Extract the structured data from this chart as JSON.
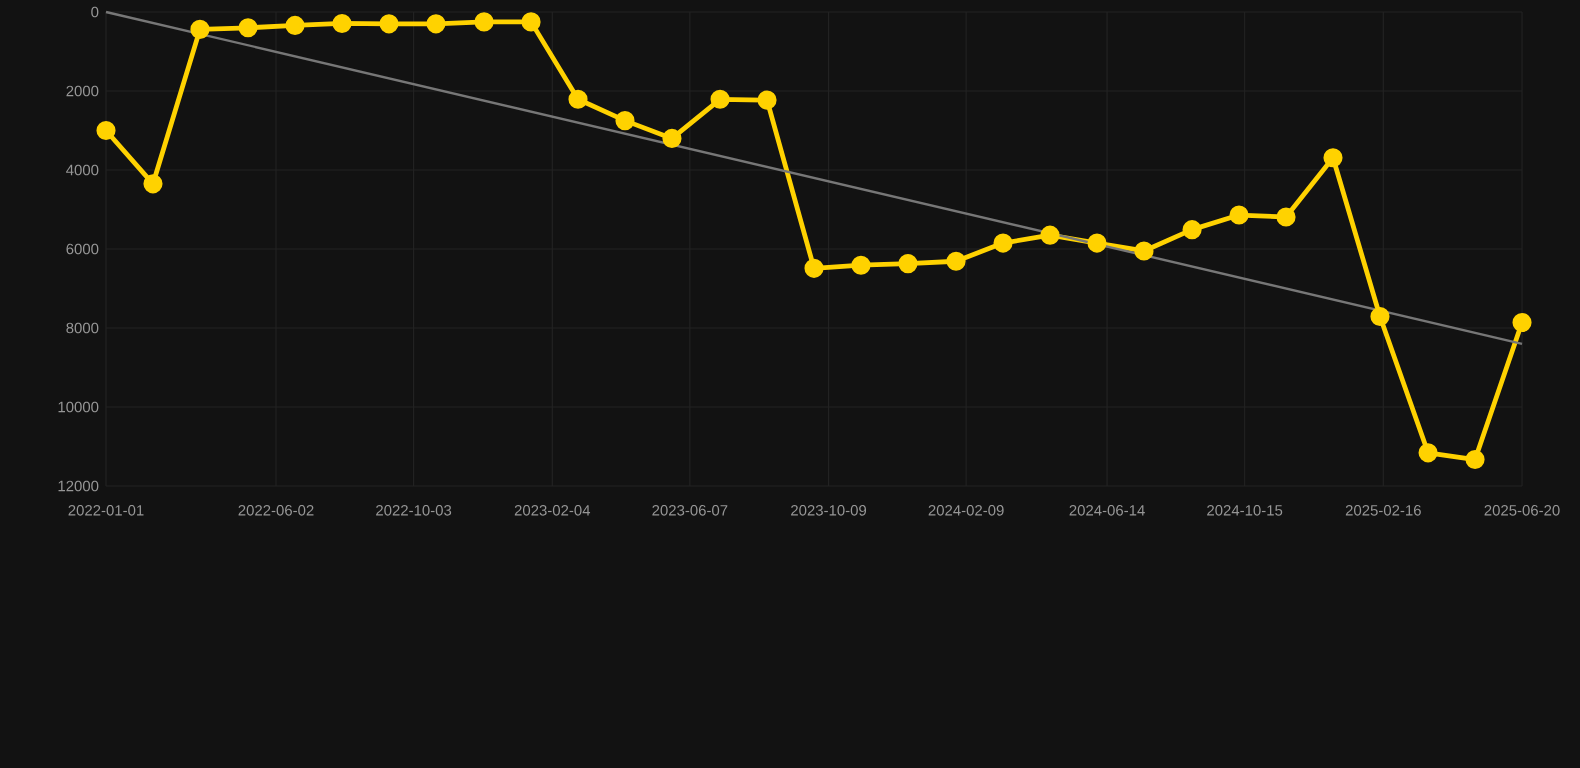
{
  "chart_data": {
    "type": "line",
    "x": [
      "2022-01-01",
      "2022-02-12",
      "2022-03-26",
      "2022-05-08",
      "2022-06-19",
      "2022-07-31",
      "2022-09-11",
      "2022-10-23",
      "2022-12-05",
      "2023-01-16",
      "2023-02-27",
      "2023-04-10",
      "2023-05-22",
      "2023-07-04",
      "2023-08-15",
      "2023-09-26",
      "2023-11-07",
      "2023-12-19",
      "2024-01-31",
      "2024-03-13",
      "2024-04-24",
      "2024-06-05",
      "2024-07-17",
      "2024-08-29",
      "2024-10-10",
      "2024-11-21",
      "2025-01-02",
      "2025-02-13",
      "2025-03-28",
      "2025-05-09",
      "2025-06-20"
    ],
    "series": [
      {
        "color": "#ffd200",
        "marker": "circle",
        "values": [
          3000,
          4350,
          440,
          400,
          340,
          290,
          300,
          300,
          250,
          250,
          2210,
          2750,
          3200,
          2210,
          2230,
          6490,
          6410,
          6370,
          6310,
          5850,
          5650,
          5850,
          6050,
          5510,
          5140,
          5190,
          3690,
          7710,
          11160,
          11330,
          7860
        ]
      },
      {
        "type": "line",
        "color": "#777777",
        "marker": "none",
        "x": [
          "2022-01-01",
          "2025-06-20"
        ],
        "values": [
          0,
          8400
        ]
      }
    ],
    "xlim": [
      "2022-01-01",
      "2025-06-20"
    ],
    "xticks": [
      "2022-01-01",
      "2022-06-02",
      "2022-10-03",
      "2023-02-04",
      "2023-06-07",
      "2023-10-09",
      "2024-02-09",
      "2024-06-14",
      "2024-10-15",
      "2025-02-16",
      "2025-06-20"
    ],
    "ylim": [
      12000,
      0
    ],
    "yticks": [
      0,
      2000,
      4000,
      6000,
      8000,
      10000,
      12000
    ],
    "grid": true,
    "line_style": "solid"
  }
}
